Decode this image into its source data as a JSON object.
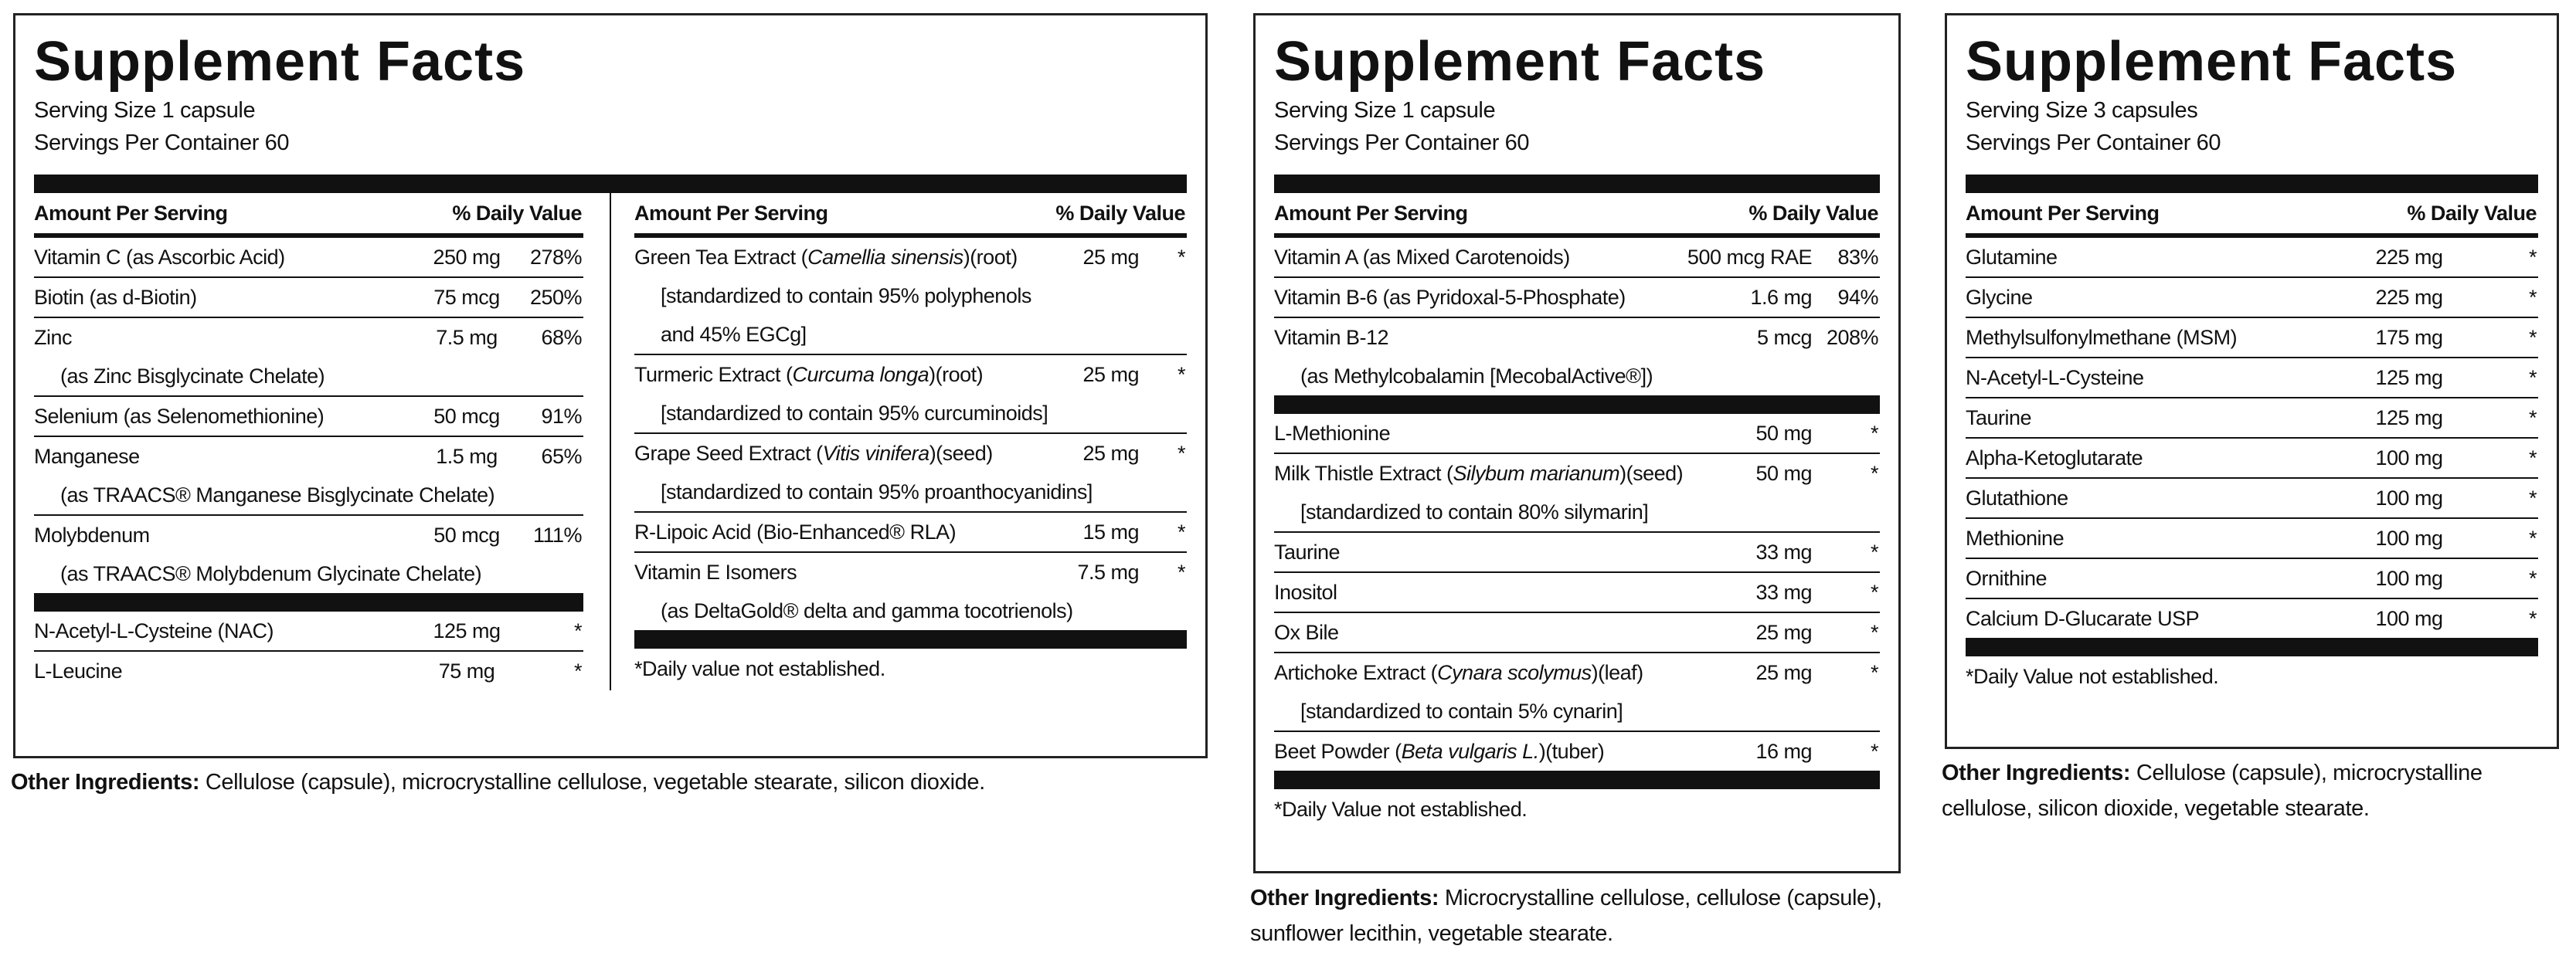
{
  "panels": [
    {
      "title": "Supplement Facts",
      "serving_size": "Serving Size 1 capsule",
      "servings_per_container": "Servings Per Container 60",
      "groups": [
        {
          "header": [
            "Amount Per Serving",
            "% Daily Value"
          ],
          "sections": [
            [
              {
                "name": "Vitamin C (as Ascorbic Acid)",
                "amount": "250 mg",
                "dv": "278%"
              },
              {
                "name": "Biotin (as d-Biotin)",
                "amount": "75 mcg",
                "dv": "250%"
              },
              {
                "name": "Zinc",
                "sub": [
                  "(as Zinc Bisglycinate Chelate)"
                ],
                "amount": "7.5 mg",
                "dv": "68%"
              },
              {
                "name": "Selenium (as Selenomethionine)",
                "amount": "50 mcg",
                "dv": "91%"
              },
              {
                "name": "Manganese",
                "sub": [
                  "(as TRAACS® Manganese Bisglycinate Chelate)"
                ],
                "amount": "1.5 mg",
                "dv": "65%"
              },
              {
                "name": "Molybdenum",
                "sub": [
                  "(as TRAACS® Molybdenum Glycinate Chelate)"
                ],
                "amount": "50 mcg",
                "dv": "111%"
              }
            ],
            [
              {
                "name": "N-Acetyl-L-Cysteine (NAC)",
                "amount": "125 mg",
                "dv": "*"
              },
              {
                "name": "L-Leucine",
                "amount": "75 mg",
                "dv": "*"
              }
            ]
          ]
        },
        {
          "header": [
            "Amount Per Serving",
            "% Daily Value"
          ],
          "sections": [
            [
              {
                "name": [
                  "Green Tea Extract (",
                  "Camellia sinensis",
                  ")(root)"
                ],
                "sub": [
                  "[standardized to contain 95% polyphenols",
                  "and 45% EGCg]"
                ],
                "amount": "25 mg",
                "dv": "*"
              },
              {
                "name": [
                  "Turmeric Extract (",
                  "Curcuma longa",
                  ")(root)"
                ],
                "sub": [
                  "[standardized to contain 95% curcuminoids]"
                ],
                "amount": "25 mg",
                "dv": "*"
              },
              {
                "name": [
                  "Grape Seed Extract (",
                  "Vitis vinifera",
                  ")(seed)"
                ],
                "sub": [
                  "[standardized to contain 95% proanthocyanidins]"
                ],
                "amount": "25 mg",
                "dv": "*"
              },
              {
                "name": "R-Lipoic Acid (Bio-Enhanced® RLA)",
                "amount": "15 mg",
                "dv": "*"
              },
              {
                "name": "Vitamin E Isomers",
                "sub": [
                  "(as DeltaGold® delta and gamma tocotrienols)"
                ],
                "amount": "7.5 mg",
                "dv": "*"
              }
            ]
          ],
          "footnote": "*Daily value not established."
        }
      ],
      "other_label": "Other Ingredients:",
      "other_text": "Cellulose (capsule), microcrystalline cellulose, vegetable stearate, silicon dioxide."
    },
    {
      "title": "Supplement Facts",
      "serving_size": "Serving Size 1 capsule",
      "servings_per_container": "Servings Per Container 60",
      "groups": [
        {
          "header": [
            "Amount Per Serving",
            "% Daily Value"
          ],
          "sections": [
            [
              {
                "name": "Vitamin A (as Mixed Carotenoids)",
                "amount": "500 mcg RAE",
                "dv": "83%"
              },
              {
                "name": "Vitamin B-6 (as Pyridoxal-5-Phosphate)",
                "amount": "1.6 mg",
                "dv": "94%"
              },
              {
                "name": "Vitamin B-12",
                "sub": [
                  "(as Methylcobalamin [MecobalActive®])"
                ],
                "amount": "5 mcg",
                "dv": "208%"
              }
            ],
            [
              {
                "name": "L-Methionine",
                "amount": "50 mg",
                "dv": "*"
              },
              {
                "name": [
                  "Milk Thistle Extract (",
                  "Silybum marianum",
                  ")(seed)"
                ],
                "sub": [
                  "[standardized to contain 80% silymarin]"
                ],
                "amount": "50 mg",
                "dv": "*"
              },
              {
                "name": "Taurine",
                "amount": "33 mg",
                "dv": "*"
              },
              {
                "name": "Inositol",
                "amount": "33 mg",
                "dv": "*"
              },
              {
                "name": "Ox Bile",
                "amount": "25 mg",
                "dv": "*"
              },
              {
                "name": [
                  "Artichoke Extract (",
                  "Cynara scolymus",
                  ")(leaf)"
                ],
                "sub": [
                  "[standardized to contain 5% cynarin]"
                ],
                "amount": "25 mg",
                "dv": "*"
              },
              {
                "name": [
                  "Beet Powder (",
                  "Beta vulgaris L.",
                  ")(tuber)"
                ],
                "amount": "16 mg",
                "dv": "*"
              }
            ]
          ],
          "footnote": "*Daily Value not established."
        }
      ],
      "other_label": "Other Ingredients:",
      "other_text": "Microcrystalline cellulose, cellulose (capsule), sunflower lecithin, vegetable stearate."
    },
    {
      "title": "Supplement Facts",
      "serving_size": "Serving Size 3 capsules",
      "servings_per_container": "Servings Per Container 60",
      "groups": [
        {
          "header": [
            "Amount Per Serving",
            "% Daily Value"
          ],
          "sections": [
            [
              {
                "name": "Glutamine",
                "amount": "225 mg",
                "dv": "*"
              },
              {
                "name": "Glycine",
                "amount": "225 mg",
                "dv": "*"
              },
              {
                "name": "Methylsulfonylmethane (MSM)",
                "amount": "175 mg",
                "dv": "*"
              },
              {
                "name": "N-Acetyl-L-Cysteine",
                "amount": "125 mg",
                "dv": "*"
              },
              {
                "name": "Taurine",
                "amount": "125 mg",
                "dv": "*"
              },
              {
                "name": "Alpha-Ketoglutarate",
                "amount": "100 mg",
                "dv": "*"
              },
              {
                "name": "Glutathione",
                "amount": "100 mg",
                "dv": "*"
              },
              {
                "name": "Methionine",
                "amount": "100 mg",
                "dv": "*"
              },
              {
                "name": "Ornithine",
                "amount": "100 mg",
                "dv": "*"
              },
              {
                "name": "Calcium D-Glucarate USP",
                "amount": "100 mg",
                "dv": "*"
              }
            ]
          ],
          "footnote": "*Daily Value not established."
        }
      ],
      "other_label": "Other Ingredients:",
      "other_text": "Cellulose (capsule), microcrystalline cellulose, silicon dioxide, vegetable stearate."
    }
  ]
}
